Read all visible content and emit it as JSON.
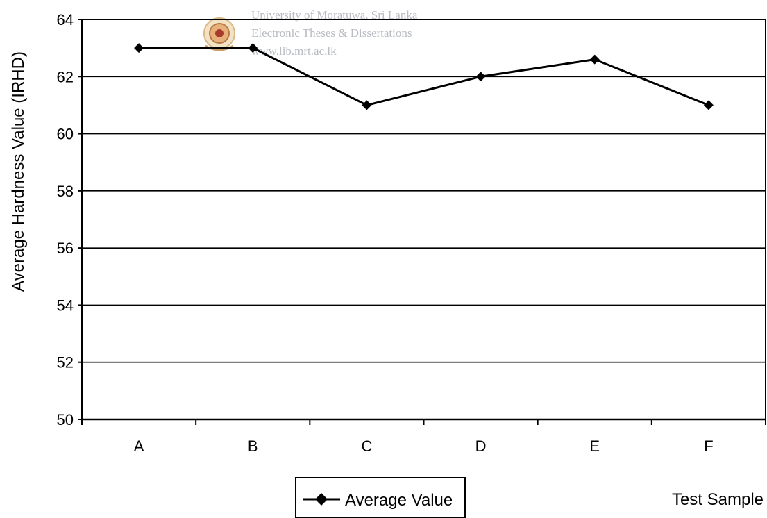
{
  "watermark": {
    "line1": "University of Moratuwa, Sri Lanka",
    "line2": "Electronic Theses & Dissertations",
    "line3": "www.lib.mrt.ac.lk",
    "seal": "university-seal-icon"
  },
  "chart_data": {
    "type": "line",
    "categories": [
      "A",
      "B",
      "C",
      "D",
      "E",
      "F"
    ],
    "series": [
      {
        "name": "Average Value",
        "values": [
          63,
          63,
          61,
          62,
          62.6,
          61
        ],
        "color": "#000000",
        "marker": "diamond"
      }
    ],
    "title": "",
    "xlabel": "Test Sample",
    "ylabel": "Average Hardness Value (IRHD)",
    "ylim": [
      50,
      64
    ],
    "yticks": [
      50,
      52,
      54,
      56,
      58,
      60,
      62,
      64
    ],
    "grid": true,
    "legend": "bottom-center"
  }
}
